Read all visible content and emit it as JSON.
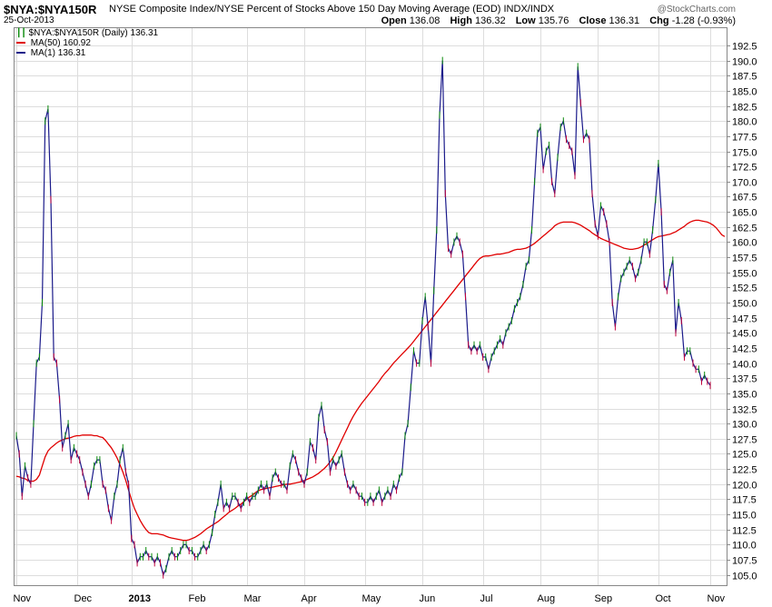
{
  "header": {
    "symbol": "$NYA:$NYA150R",
    "description": "NYSE Composite Index/NYSE Percent of Stocks Above 150 Day Moving Average (EOD)  INDX/INDX",
    "date": "25-Oct-2013",
    "brand": "@StockCharts.com",
    "ohlc": {
      "open_label": "Open",
      "open": "136.08",
      "high_label": "High",
      "high": "136.32",
      "low_label": "Low",
      "low": "135.76",
      "close_label": "Close",
      "close": "136.31",
      "chg_label": "Chg",
      "chg": "-1.28 (-0.93%)"
    }
  },
  "legend": {
    "main": "$NYA:$NYA150R (Daily) 136.31",
    "ma50": "MA(50) 160.92",
    "ma1": "MA(1) 136.31"
  },
  "colors": {
    "price_line": "#1a1a8a",
    "ma50_line": "#e00000",
    "up_tick": "#0a8a0a",
    "down_tick": "#c0003a",
    "grid": "#dddddd",
    "frame": "#888888"
  },
  "chart_data": {
    "type": "line",
    "title": "$NYA:$NYA150R",
    "ylim": [
      104.5,
      192.5
    ],
    "y_ticks": [
      "105.0",
      "107.5",
      "110.0",
      "112.5",
      "115.0",
      "117.5",
      "120.0",
      "122.5",
      "125.0",
      "127.5",
      "130.0",
      "132.5",
      "135.0",
      "137.5",
      "140.0",
      "142.5",
      "145.0",
      "147.5",
      "150.0",
      "152.5",
      "155.0",
      "157.5",
      "160.0",
      "162.5",
      "165.0",
      "167.5",
      "170.0",
      "172.5",
      "175.0",
      "177.5",
      "180.0",
      "182.5",
      "185.0",
      "187.5",
      "190.0",
      "192.5"
    ],
    "x_ticks": [
      {
        "label": "Nov",
        "pos": 0
      },
      {
        "label": "Dec",
        "pos": 21
      },
      {
        "label": "2013",
        "pos": 40
      },
      {
        "label": "Feb",
        "pos": 61
      },
      {
        "label": "Mar",
        "pos": 80
      },
      {
        "label": "Apr",
        "pos": 100
      },
      {
        "label": "May",
        "pos": 121
      },
      {
        "label": "Jun",
        "pos": 141
      },
      {
        "label": "Jul",
        "pos": 162
      },
      {
        "label": "Aug",
        "pos": 182
      },
      {
        "label": "Sep",
        "pos": 202
      },
      {
        "label": "Oct",
        "pos": 223
      },
      {
        "label": "Nov",
        "pos": 241
      }
    ],
    "grid": true,
    "series": [
      {
        "name": "MA(1) 136.31",
        "key": "price",
        "values": [
          128,
          125,
          118,
          123,
          121,
          120,
          130,
          140,
          141,
          150,
          180,
          182,
          167,
          141,
          140,
          134,
          126,
          128,
          130,
          124,
          126,
          125,
          124,
          122,
          120,
          118,
          120,
          123,
          124,
          124,
          120,
          119,
          116,
          114,
          118,
          120,
          124,
          126,
          122,
          120,
          111,
          110,
          107,
          108,
          108,
          109,
          108,
          108,
          107,
          108,
          107,
          105,
          106,
          108,
          109,
          108,
          108,
          109,
          110,
          110,
          109,
          109,
          108,
          108,
          109,
          110,
          109,
          110,
          112,
          115,
          117,
          120,
          116,
          117,
          116,
          118,
          118,
          117,
          116,
          117,
          118,
          117,
          118,
          118,
          119,
          120,
          119,
          120,
          118,
          121,
          122,
          121,
          120,
          120,
          119,
          123,
          125,
          124,
          122,
          121,
          120,
          122,
          127,
          126,
          124,
          131,
          133,
          129,
          127,
          122,
          124,
          123,
          124,
          125,
          122,
          120,
          119,
          120,
          119,
          118,
          118,
          117,
          117,
          118,
          117,
          118,
          119,
          117,
          118,
          119,
          118,
          120,
          119,
          121,
          122,
          128,
          130,
          136,
          142,
          140,
          140,
          147,
          151,
          146,
          140,
          152,
          162,
          181,
          190,
          168,
          159,
          158,
          160,
          161,
          160,
          158,
          151,
          143,
          142,
          143,
          142,
          143,
          141,
          141,
          139,
          141,
          142,
          143,
          144,
          143,
          145,
          146,
          147,
          149,
          150,
          151,
          153,
          156,
          157,
          162,
          170,
          178,
          179,
          172,
          175,
          176,
          170,
          168,
          174,
          179,
          180,
          177,
          176,
          175,
          171,
          189,
          183,
          177,
          178,
          177,
          168,
          163,
          161,
          166,
          165,
          163,
          160,
          150,
          146,
          151,
          154,
          155,
          156,
          157,
          156,
          154,
          155,
          157,
          160,
          160,
          158,
          162,
          167,
          173,
          165,
          153,
          152,
          155,
          157,
          145,
          150,
          147,
          141,
          142,
          142,
          140,
          139,
          139,
          137,
          138,
          137,
          136.3
        ]
      },
      {
        "name": "MA(50) 160.92",
        "key": "ma50",
        "values": [
          121.3,
          121.2,
          121.0,
          120.9,
          120.6,
          120.5,
          120.5,
          120.8,
          121.5,
          123.0,
          124.5,
          125.5,
          126.0,
          126.4,
          126.8,
          127.1,
          127.3,
          127.5,
          127.6,
          127.7,
          127.9,
          128.0,
          128.0,
          128.1,
          128.1,
          128.1,
          128.1,
          128.0,
          128.0,
          127.8,
          127.7,
          127.2,
          126.6,
          126.0,
          125.2,
          124.3,
          123.2,
          122.0,
          120.6,
          119.0,
          117.4,
          116.0,
          115.0,
          114.0,
          113.2,
          112.5,
          112.0,
          111.8,
          111.8,
          111.8,
          111.7,
          111.6,
          111.4,
          111.2,
          111.1,
          111.0,
          110.9,
          110.8,
          110.7,
          110.7,
          110.8,
          111.0,
          111.2,
          111.5,
          111.8,
          112.2,
          112.6,
          112.9,
          113.2,
          113.5,
          113.8,
          114.2,
          114.6,
          115.0,
          115.4,
          115.7,
          116.0,
          116.4,
          116.7,
          117.1,
          117.5,
          117.9,
          118.2,
          118.6,
          118.9,
          119.1,
          119.2,
          119.3,
          119.4,
          119.5,
          119.6,
          119.7,
          119.8,
          119.9,
          120.0,
          120.0,
          120.1,
          120.2,
          120.3,
          120.4,
          120.6,
          120.8,
          121.0,
          121.2,
          121.5,
          121.8,
          122.2,
          122.6,
          123.1,
          123.7,
          124.4,
          125.3,
          126.3,
          127.3,
          128.3,
          129.3,
          130.3,
          131.2,
          132.0,
          132.7,
          133.4,
          134.0,
          134.6,
          135.2,
          135.8,
          136.4,
          137.0,
          137.7,
          138.3,
          138.8,
          139.4,
          140.0,
          140.5,
          141.0,
          141.5,
          142.0,
          142.5,
          143.0,
          143.6,
          144.2,
          144.8,
          145.4,
          146.0,
          146.6,
          147.2,
          147.8,
          148.4,
          149.0,
          149.6,
          150.2,
          150.8,
          151.4,
          152.0,
          152.6,
          153.2,
          153.8,
          154.4,
          155.0,
          155.6,
          156.2,
          156.8,
          157.3,
          157.6,
          157.7,
          157.7,
          157.8,
          157.9,
          158.0,
          158.0,
          158.1,
          158.2,
          158.3,
          158.5,
          158.7,
          158.8,
          158.8,
          158.9,
          159.0,
          159.2,
          159.5,
          159.8,
          160.2,
          160.6,
          161.0,
          161.4,
          161.8,
          162.2,
          162.7,
          163.0,
          163.2,
          163.3,
          163.3,
          163.3,
          163.3,
          163.2,
          163.0,
          162.8,
          162.5,
          162.2,
          161.9,
          161.5,
          161.2,
          160.9,
          160.6,
          160.4,
          160.2,
          160.0,
          159.8,
          159.6,
          159.4,
          159.2,
          159.0,
          158.9,
          158.8,
          158.8,
          158.9,
          159.0,
          159.2,
          159.5,
          159.8,
          160.1,
          160.4,
          160.7,
          160.9,
          161.0,
          161.1,
          161.2,
          161.3,
          161.5,
          161.7,
          162.0,
          162.3,
          162.6,
          163.0,
          163.3,
          163.5,
          163.6,
          163.6,
          163.5,
          163.4,
          163.3,
          163.1,
          162.8,
          162.4,
          161.8,
          161.2,
          160.92
        ]
      }
    ]
  }
}
